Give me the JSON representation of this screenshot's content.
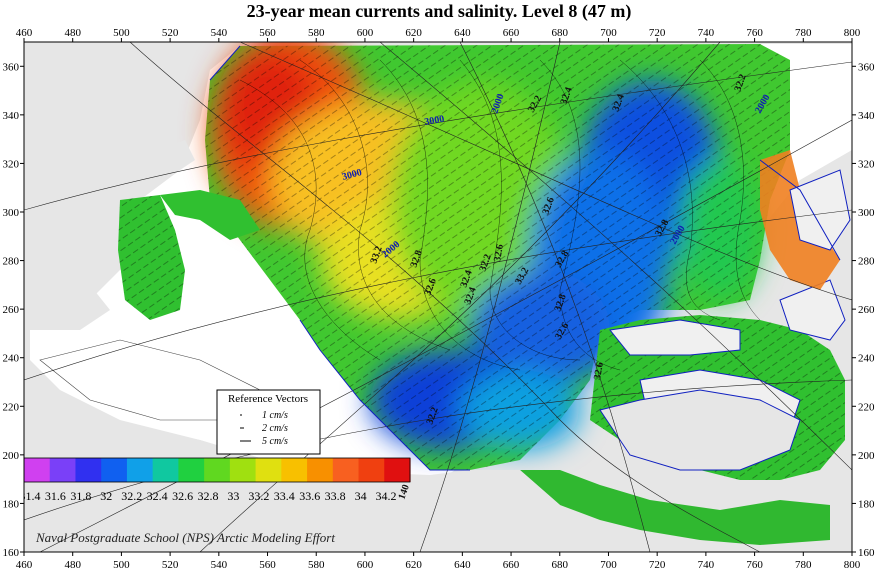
{
  "title": "23-year mean currents and salinity. Level  8 (47 m)",
  "credit": "Naval Postgraduate School (NPS) Arctic Modeling Effort",
  "chart_data": {
    "type": "heatmap",
    "title": "23-year mean currents and salinity. Level  8 (47 m)",
    "x_ticks": [
      460,
      480,
      500,
      520,
      540,
      560,
      580,
      600,
      620,
      640,
      660,
      680,
      700,
      720,
      740,
      760,
      780,
      800
    ],
    "y_ticks": [
      160,
      180,
      200,
      220,
      240,
      260,
      280,
      300,
      320,
      340,
      360
    ],
    "xlim": [
      460,
      800
    ],
    "ylim": [
      160,
      370
    ],
    "grid": "on (projected lat/lon graticule)",
    "colorbar": {
      "ticks": [
        "31.4",
        "31.6",
        "31.8",
        "32",
        "32.2",
        "32.4",
        "32.6",
        "32.8",
        "33",
        "33.2",
        "33.4",
        "33.6",
        "33.8",
        "34",
        "34.2"
      ],
      "colors": [
        "#d040f0",
        "#7a40f8",
        "#3030f0",
        "#1060f0",
        "#10a0e8",
        "#10c8a0",
        "#20d040",
        "#60d820",
        "#a0e010",
        "#e0e010",
        "#f8c000",
        "#f89000",
        "#f86020",
        "#f04010",
        "#e01010"
      ]
    },
    "contour_labels": [
      "32.8",
      "33.2",
      "32.6",
      "32.4",
      "32.2",
      "32.4",
      "32.6",
      "32.8",
      "32.6",
      "32.8",
      "32.8",
      "33.2",
      "32.6",
      "32.6",
      "32.2",
      "32.4",
      "32.4",
      "32.2",
      "32.2"
    ],
    "depth_labels": [
      "3000",
      "3000",
      "2000",
      "2000",
      "2000",
      "2000",
      "140"
    ],
    "reference_vectors": {
      "title": "Reference Vectors",
      "items": [
        {
          "label": "1 cm/s",
          "magnitude": 1
        },
        {
          "label": "2 cm/s",
          "magnitude": 2
        },
        {
          "label": "5 cm/s",
          "magnitude": 5
        }
      ]
    }
  }
}
